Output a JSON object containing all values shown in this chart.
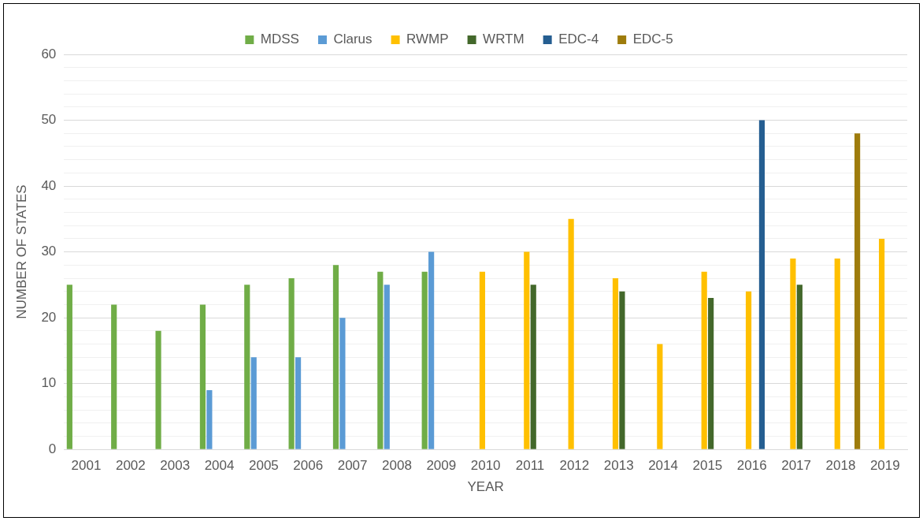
{
  "chart_data": {
    "type": "bar",
    "xlabel": "YEAR",
    "ylabel": "NUMBER OF STATES",
    "categories": [
      "2001",
      "2002",
      "2003",
      "2004",
      "2005",
      "2006",
      "2007",
      "2008",
      "2009",
      "2010",
      "2011",
      "2012",
      "2013",
      "2014",
      "2015",
      "2016",
      "2017",
      "2018",
      "2019"
    ],
    "series": [
      {
        "name": "MDSS",
        "color": "#70ad47",
        "values": [
          25,
          22,
          18,
          22,
          25,
          26,
          28,
          27,
          27,
          null,
          null,
          null,
          null,
          null,
          null,
          null,
          null,
          null,
          null
        ]
      },
      {
        "name": "Clarus",
        "color": "#5b9bd5",
        "values": [
          null,
          null,
          null,
          9,
          14,
          14,
          20,
          25,
          30,
          null,
          null,
          null,
          null,
          null,
          null,
          null,
          null,
          null,
          null
        ]
      },
      {
        "name": "RWMP",
        "color": "#ffc000",
        "values": [
          null,
          null,
          null,
          null,
          null,
          null,
          null,
          null,
          null,
          27,
          30,
          35,
          26,
          16,
          27,
          24,
          29,
          29,
          32
        ]
      },
      {
        "name": "WRTM",
        "color": "#43682b",
        "values": [
          null,
          null,
          null,
          null,
          null,
          null,
          null,
          null,
          null,
          null,
          25,
          null,
          24,
          null,
          23,
          null,
          25,
          null,
          null
        ]
      },
      {
        "name": "EDC-4",
        "color": "#255e91",
        "values": [
          null,
          null,
          null,
          null,
          null,
          null,
          null,
          null,
          null,
          null,
          null,
          null,
          null,
          null,
          null,
          50,
          null,
          null,
          null
        ]
      },
      {
        "name": "EDC-5",
        "color": "#9e7c0c",
        "values": [
          null,
          null,
          null,
          null,
          null,
          null,
          null,
          null,
          null,
          null,
          null,
          null,
          null,
          null,
          null,
          null,
          null,
          48,
          null
        ]
      }
    ],
    "ylim": [
      0,
      60
    ],
    "yticks": [
      0,
      {
        "value": 2,
        "label": null
      },
      {
        "value": 4,
        "label": null
      },
      {
        "value": 6,
        "label": null
      },
      {
        "value": 8,
        "label": null
      },
      10,
      {
        "value": 12,
        "label": null
      },
      {
        "value": 14,
        "label": null
      },
      {
        "value": 16,
        "label": null
      },
      {
        "value": 18,
        "label": null
      },
      20,
      {
        "value": 22,
        "label": null
      },
      {
        "value": 24,
        "label": null
      },
      {
        "value": 26,
        "label": null
      },
      {
        "value": 28,
        "label": null
      },
      30,
      {
        "value": 32,
        "label": null
      },
      {
        "value": 34,
        "label": null
      },
      {
        "value": 36,
        "label": null
      },
      {
        "value": 38,
        "label": null
      },
      40,
      {
        "value": 42,
        "label": null
      },
      {
        "value": 44,
        "label": null
      },
      {
        "value": 46,
        "label": null
      },
      {
        "value": 48,
        "label": null
      },
      50,
      {
        "value": 52,
        "label": null
      },
      {
        "value": 54,
        "label": null
      },
      {
        "value": 56,
        "label": null
      },
      {
        "value": 58,
        "label": null
      },
      60
    ],
    "grid": "y",
    "legend": "top"
  }
}
